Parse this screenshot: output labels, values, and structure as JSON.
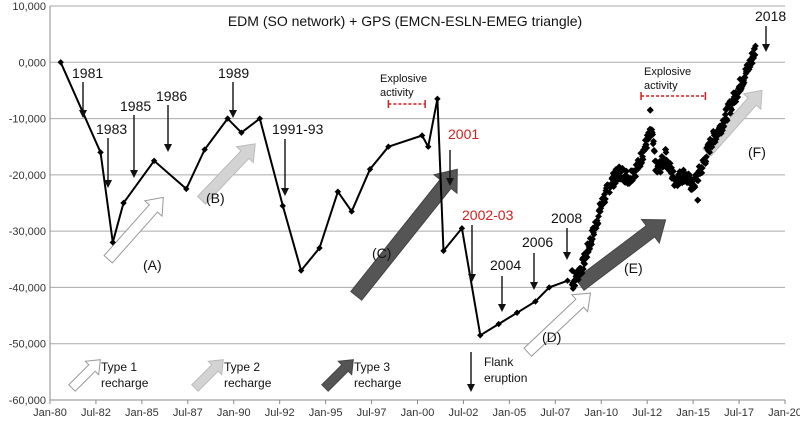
{
  "chart_data": {
    "type": "line",
    "title": "EDM (SO network) + GPS (EMCN-ESLN-EMEG triangle)",
    "xlabel": "",
    "ylabel": "",
    "ylim": [
      -60000,
      10000
    ],
    "xlim": [
      "1980-01",
      "2020-01"
    ],
    "y_ticks": [
      10000,
      0,
      -10000,
      -20000,
      -30000,
      -40000,
      -50000,
      -60000
    ],
    "y_tick_labels": [
      "10,000",
      "0,000",
      "-10,000",
      "-20,000",
      "-30,000",
      "-40,000",
      "-50,000",
      "-60,000"
    ],
    "x_ticks": [
      "1980-01",
      "1982-07",
      "1985-01",
      "1987-07",
      "1990-01",
      "1992-07",
      "1995-01",
      "1997-07",
      "2000-01",
      "2002-07",
      "2005-01",
      "2007-07",
      "2010-01",
      "2012-07",
      "2015-01",
      "2017-07",
      "2020-01"
    ],
    "x_tick_labels": [
      "Jan-80",
      "Jul-82",
      "Jan-85",
      "Jul-87",
      "Jan-90",
      "Jul-92",
      "Jan-95",
      "Jul-97",
      "Jan-00",
      "Jul-02",
      "Jan-05",
      "Jul-07",
      "Jan-10",
      "Jul-12",
      "Jan-15",
      "Jul-17",
      "Jan-20"
    ],
    "grid": "horizontal",
    "series": [
      {
        "name": "",
        "style": "line-markers",
        "x": [
          "1980-08",
          "1982-10",
          "1983-06",
          "1984-01",
          "1985-09",
          "1987-06",
          "1988-06",
          "1989-09",
          "1990-06",
          "1991-06",
          "1992-09",
          "1993-09",
          "1994-09",
          "1995-09",
          "1996-06",
          "1997-06",
          "1998-06",
          "2000-04",
          "2000-08",
          "2001-02",
          "2001-06",
          "2002-06",
          "2003-06",
          "2004-06",
          "2005-06",
          "2006-06",
          "2007-03",
          "2008-03"
        ],
        "y": [
          0,
          -16000,
          -32000,
          -25000,
          -17500,
          -22500,
          -15500,
          -10000,
          -12500,
          -10000,
          -25500,
          -37000,
          -33000,
          -23000,
          -26500,
          -19000,
          -15000,
          -13000,
          -15000,
          -6500,
          -33500,
          -29500,
          -48500,
          -46500,
          -44500,
          -42500,
          -40000,
          -38800
        ]
      },
      {
        "name": "",
        "style": "dense-markers",
        "x": [
          "2008-06",
          "2009-01",
          "2009-07",
          "2010-01",
          "2010-07",
          "2011-01",
          "2011-07",
          "2012-01",
          "2012-07",
          "2012-10",
          "2013-01",
          "2013-07",
          "2014-01",
          "2014-07",
          "2015-01",
          "2015-07",
          "2016-01",
          "2016-07",
          "2017-01",
          "2017-07",
          "2018-01",
          "2018-06"
        ],
        "y": [
          -39500,
          -36000,
          -31000,
          -25500,
          -21500,
          -19500,
          -20500,
          -18500,
          -14000,
          -12500,
          -19500,
          -17000,
          -21000,
          -20000,
          -22000,
          -18500,
          -14000,
          -11500,
          -8000,
          -4500,
          -1000,
          2500
        ],
        "spikes": [
          {
            "x": "2008-06",
            "y": -37000
          },
          {
            "x": "2012-09",
            "y": -8500
          },
          {
            "x": "2013-07",
            "y": -15500
          },
          {
            "x": "2015-04",
            "y": -24500
          }
        ]
      }
    ],
    "annotations": [
      {
        "text": "1981",
        "color": "#111111"
      },
      {
        "text": "1983",
        "color": "#111111"
      },
      {
        "text": "1985",
        "color": "#111111"
      },
      {
        "text": "1986",
        "color": "#111111"
      },
      {
        "text": "1989",
        "color": "#111111"
      },
      {
        "text": "1991-93",
        "color": "#111111"
      },
      {
        "text": "2001",
        "color": "#d11f1f"
      },
      {
        "text": "2002-03",
        "color": "#d11f1f"
      },
      {
        "text": "2004",
        "color": "#111111"
      },
      {
        "text": "2006",
        "color": "#111111"
      },
      {
        "text": "2008",
        "color": "#111111"
      },
      {
        "text": "2018",
        "color": "#111111"
      }
    ],
    "phase_labels": [
      "(A)",
      "(B)",
      "(C)",
      "(D)",
      "(E)",
      "(F)"
    ],
    "explosive_activity_periods": [
      {
        "label_line1": "Explosive",
        "label_line2": "activity",
        "from": "1998-06",
        "to": "2000-06"
      },
      {
        "label_line1": "Explosive",
        "label_line2": "activity",
        "from": "2012-03",
        "to": "2015-09"
      }
    ],
    "flank_eruption": {
      "label_line1": "Flank",
      "label_line2": "eruption"
    },
    "legend": [
      {
        "type": "type1",
        "label_line1": "Type 1",
        "label_line2": "recharge",
        "color": "#ffffff"
      },
      {
        "type": "type2",
        "label_line1": "Type 2",
        "label_line2": "recharge",
        "color": "#d3d3d3"
      },
      {
        "type": "type3",
        "label_line1": "Type 3",
        "label_line2": "recharge",
        "color": "#555555"
      }
    ],
    "colors": {
      "line": "#000000",
      "grid": "#aaaaaa",
      "red": "#d11f1f",
      "type1": "#ffffff",
      "type2": "#d3d3d3",
      "type3": "#555555"
    }
  }
}
